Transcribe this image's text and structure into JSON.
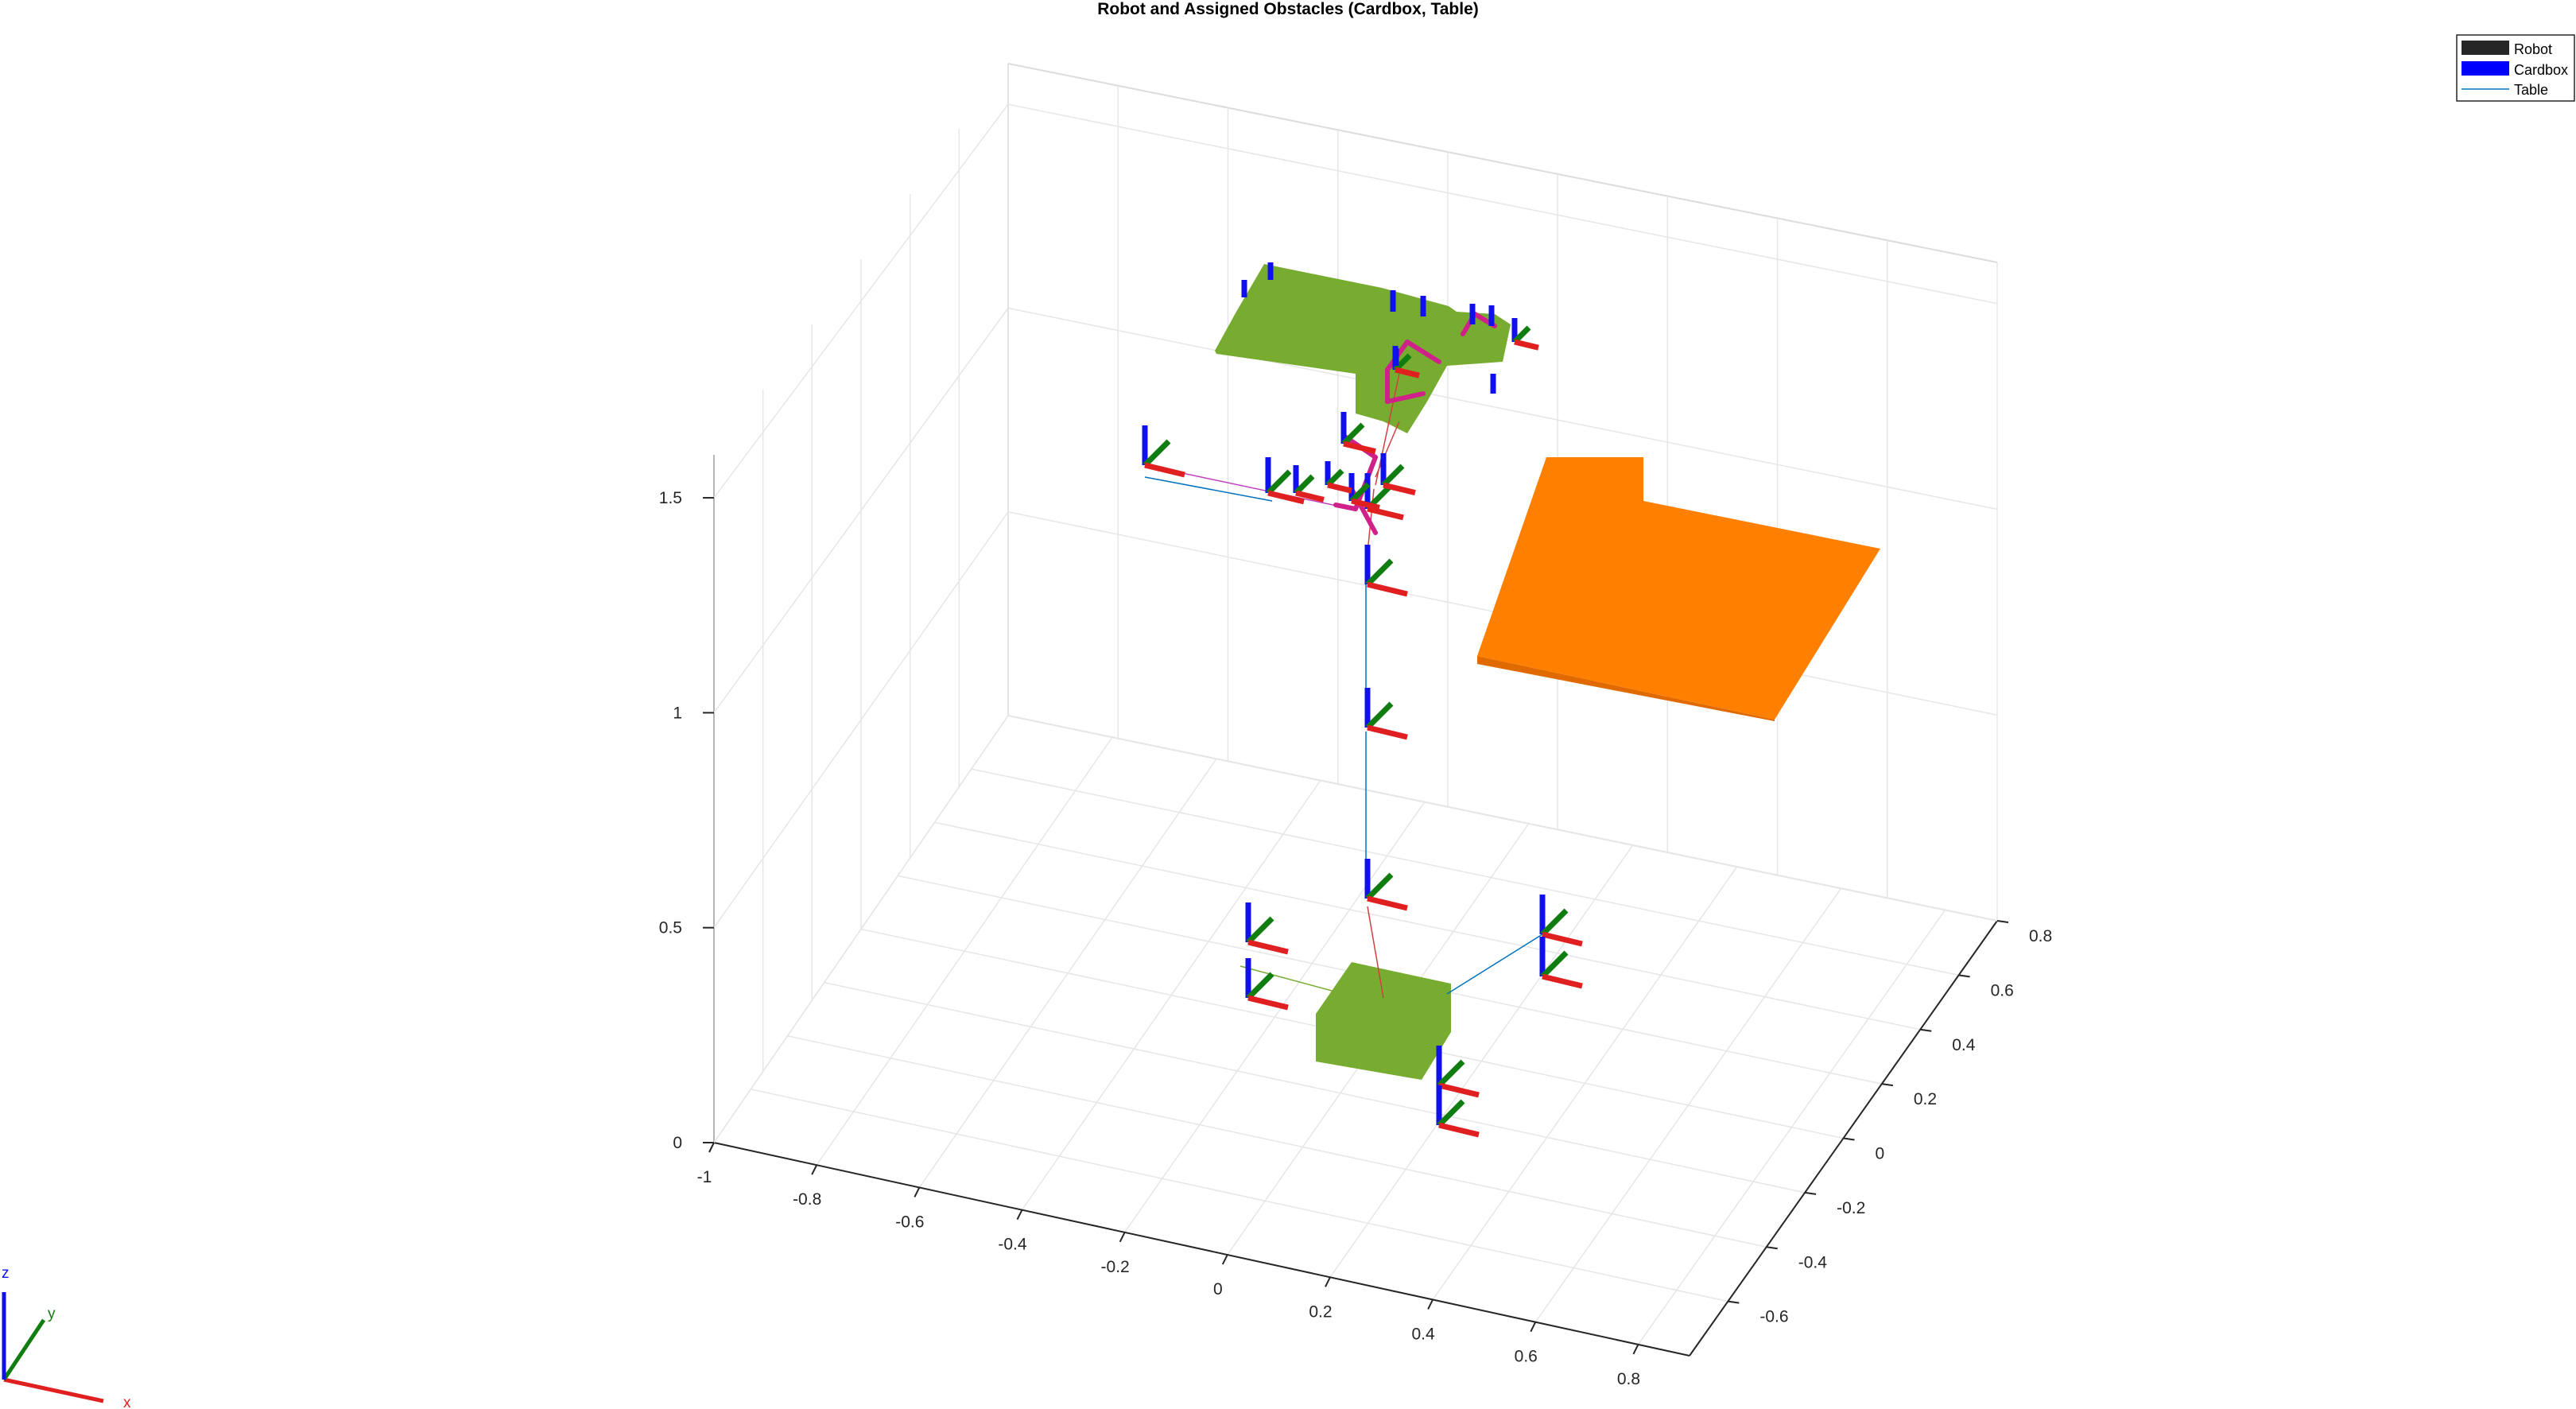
{
  "chart_data": {
    "type": "scatter",
    "projection": "3d",
    "title": "Robot and Assigned Obstacles (Cardbox, Table)",
    "xlabel": "",
    "ylabel": "",
    "zlabel": "",
    "xlim": [
      -1.0,
      0.9
    ],
    "ylim": [
      -0.8,
      0.8
    ],
    "zlim": [
      0,
      1.6
    ],
    "x_ticks": [
      "-1",
      "-0.8",
      "-0.6",
      "-0.4",
      "-0.2",
      "0",
      "0.2",
      "0.4",
      "0.6",
      "0.8"
    ],
    "y_ticks": [
      "-0.6",
      "-0.4",
      "-0.2",
      "0",
      "0.2",
      "0.4",
      "0.6",
      "0.8"
    ],
    "z_ticks": [
      "0",
      "0.5",
      "1",
      "1.5"
    ],
    "grid": true,
    "legend_position": "top-right",
    "legend": [
      {
        "label": "Robot",
        "color": "#262626",
        "marker": "patch"
      },
      {
        "label": "Cardbox",
        "color": "#0000ff",
        "marker": "patch"
      },
      {
        "label": "Table",
        "color": "#0072bd",
        "marker": "line"
      }
    ],
    "colors": {
      "robot_body": "#77ac30",
      "obstacle": "#ff8000",
      "x_axis": "#e02020",
      "y_axis": "#0f7d0f",
      "z_axis": "#1010ee"
    },
    "orientation_triad": {
      "x": "x",
      "y": "y",
      "z": "z"
    }
  }
}
